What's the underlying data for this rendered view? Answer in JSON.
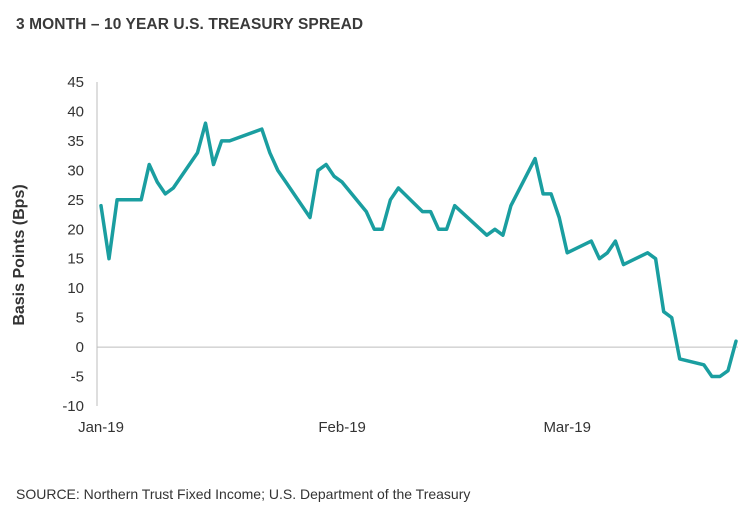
{
  "title": "3 MONTH – 10 YEAR U.S. TREASURY SPREAD",
  "source": "SOURCE: Northern Trust Fixed Income; U.S. Department of the Treasury",
  "chart_data": {
    "type": "line",
    "title": "3 MONTH – 10 YEAR U.S. TREASURY SPREAD",
    "ylabel": "Basis Points (Bps)",
    "xlabel": "",
    "ylim": [
      -10,
      45
    ],
    "yticks": [
      45,
      40,
      35,
      30,
      25,
      20,
      15,
      10,
      5,
      0,
      -5,
      -10
    ],
    "xtick_labels": [
      "Jan-19",
      "Feb-19",
      "Mar-19"
    ],
    "xlim": [
      "2019-01-02",
      "2019-03-22"
    ],
    "grid": false,
    "legend": "none",
    "line_color": "#1a9ea0",
    "series": [
      {
        "x": [
          "2019-01-02",
          "2019-01-03",
          "2019-01-04",
          "2019-01-07",
          "2019-01-08",
          "2019-01-09",
          "2019-01-10",
          "2019-01-11",
          "2019-01-14",
          "2019-01-15",
          "2019-01-16",
          "2019-01-17",
          "2019-01-18",
          "2019-01-22",
          "2019-01-23",
          "2019-01-24",
          "2019-01-25",
          "2019-01-28",
          "2019-01-29",
          "2019-01-30",
          "2019-01-31",
          "2019-02-01",
          "2019-02-04",
          "2019-02-05",
          "2019-02-06",
          "2019-02-07",
          "2019-02-08",
          "2019-02-11",
          "2019-02-12",
          "2019-02-13",
          "2019-02-14",
          "2019-02-15",
          "2019-02-19",
          "2019-02-20",
          "2019-02-21",
          "2019-02-22",
          "2019-02-25",
          "2019-02-26",
          "2019-02-27",
          "2019-02-28",
          "2019-03-01",
          "2019-03-04",
          "2019-03-05",
          "2019-03-06",
          "2019-03-07",
          "2019-03-08",
          "2019-03-11",
          "2019-03-12",
          "2019-03-13",
          "2019-03-14",
          "2019-03-15",
          "2019-03-18",
          "2019-03-19",
          "2019-03-20",
          "2019-03-21",
          "2019-03-22"
        ],
        "values": [
          24,
          15,
          25,
          25,
          31,
          28,
          26,
          27,
          33,
          38,
          31,
          35,
          35,
          37,
          33,
          30,
          28,
          22,
          30,
          31,
          29,
          28,
          23,
          20,
          20,
          25,
          27,
          23,
          23,
          20,
          20,
          24,
          19,
          20,
          19,
          24,
          32,
          26,
          26,
          22,
          16,
          18,
          15,
          16,
          18,
          14,
          16,
          15,
          6,
          5,
          -2,
          -3,
          -5,
          -5,
          -4,
          1
        ]
      }
    ]
  }
}
